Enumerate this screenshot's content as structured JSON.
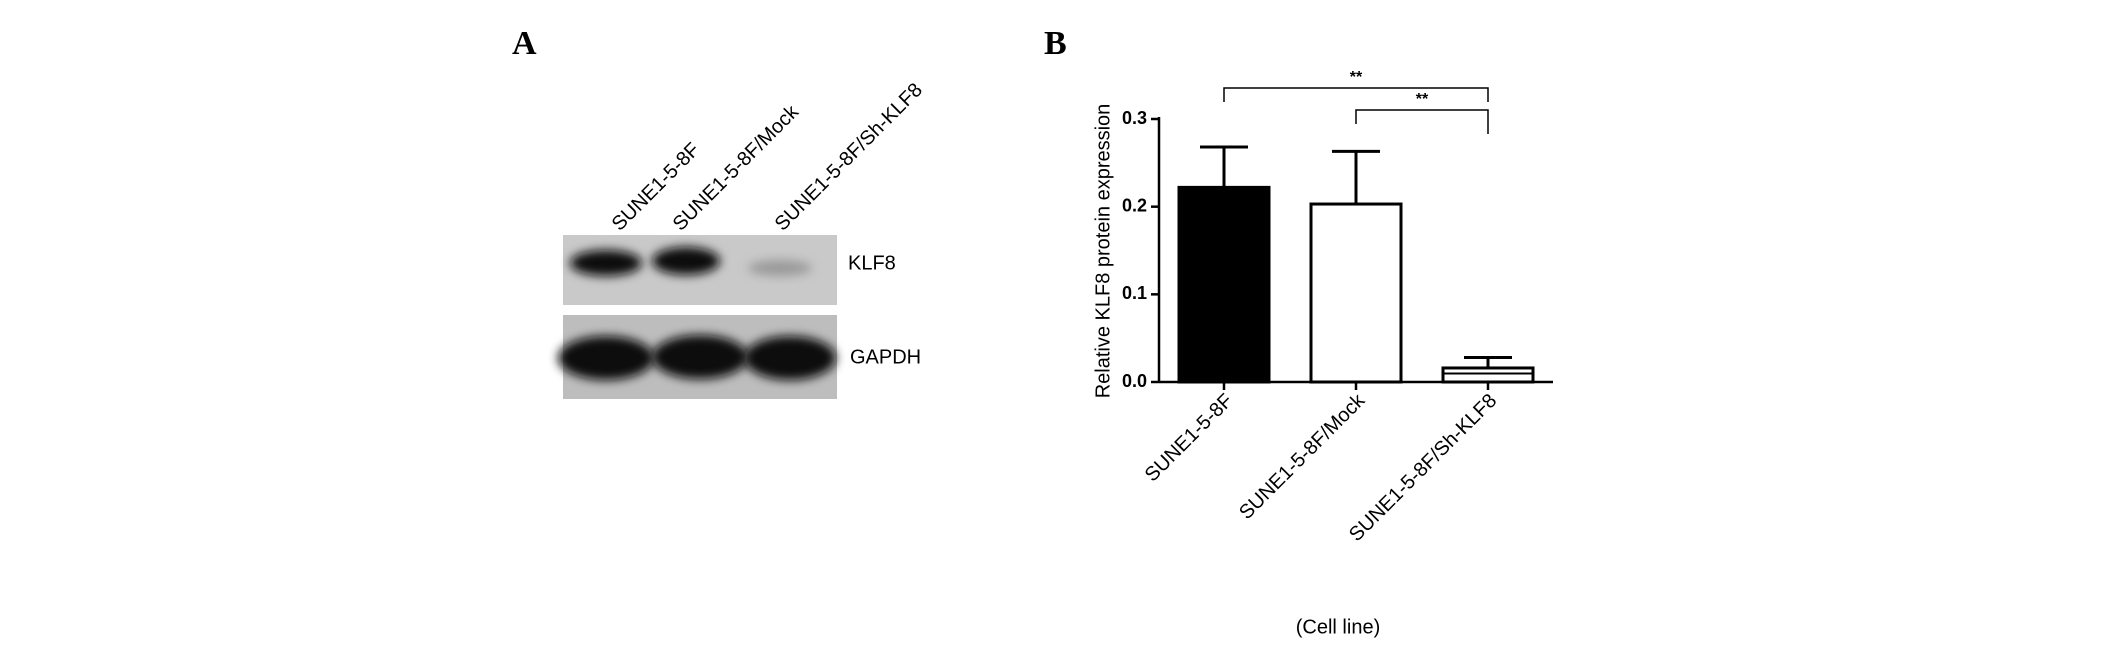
{
  "panel_a": {
    "label": "A",
    "lanes": [
      "SUNE1-5-8F",
      "SUNE1-5-8F/Mock",
      "SUNE1-5-8F/Sh-KLF8"
    ],
    "bands": [
      "KLF8",
      "GAPDH"
    ]
  },
  "chart_data": {
    "type": "bar",
    "panel_label": "B",
    "y_label": "Relative KLF8 protein expression",
    "x_label": "(Cell line)",
    "categories": [
      "SUNE1-5-8F",
      "SUNE1-5-8F/Mock",
      "SUNE1-5-8F/Sh-KLF8"
    ],
    "values": [
      0.222,
      0.203,
      0.016
    ],
    "errors": [
      0.046,
      0.06,
      0.012
    ],
    "colors": [
      "#000000",
      "#ffffff",
      "#ffffff"
    ],
    "bar_hatch": [
      false,
      false,
      true
    ],
    "ylim": [
      0,
      0.3
    ],
    "yticks": [
      {
        "value": 0,
        "label": "0.0"
      },
      0.1,
      0.2,
      0.3
    ],
    "annotations": [
      {
        "text": "**",
        "from": 0,
        "to": 2
      },
      {
        "text": "**",
        "from": 1,
        "to": 2
      }
    ]
  }
}
